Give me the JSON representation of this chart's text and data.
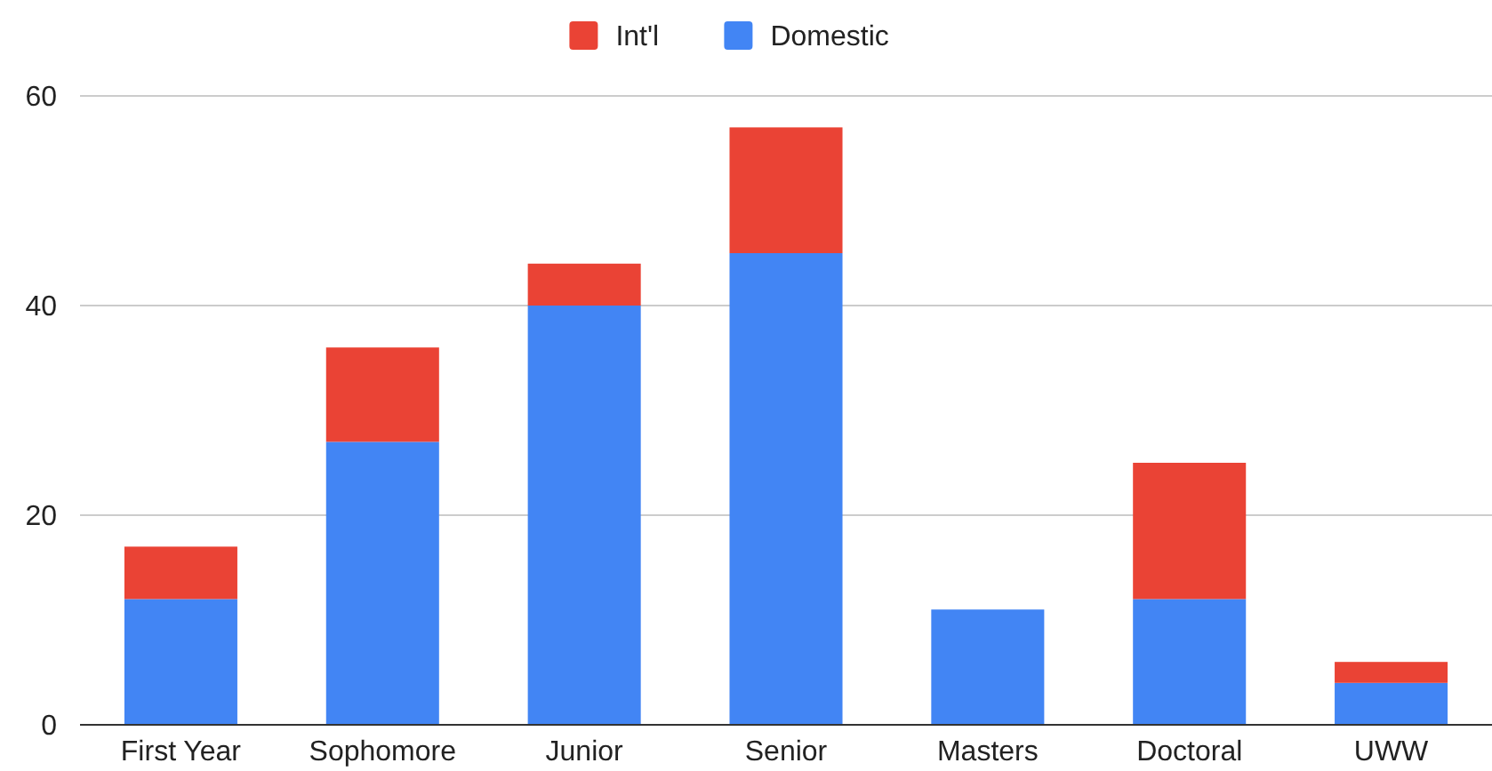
{
  "chart_data": {
    "type": "bar",
    "stacked": true,
    "categories": [
      "First Year",
      "Sophomore",
      "Junior",
      "Senior",
      "Masters",
      "Doctoral",
      "UWW"
    ],
    "series": [
      {
        "name": "Domestic",
        "color": "#4285f4",
        "values": [
          12,
          27,
          40,
          45,
          11,
          12,
          4
        ]
      },
      {
        "name": "Int'l",
        "color": "#ea4335",
        "values": [
          5,
          9,
          4,
          12,
          0,
          13,
          2
        ]
      }
    ],
    "ylim": [
      0,
      60
    ],
    "yticks": [
      0,
      20,
      40,
      60
    ],
    "grid": "y",
    "legend": "top"
  }
}
